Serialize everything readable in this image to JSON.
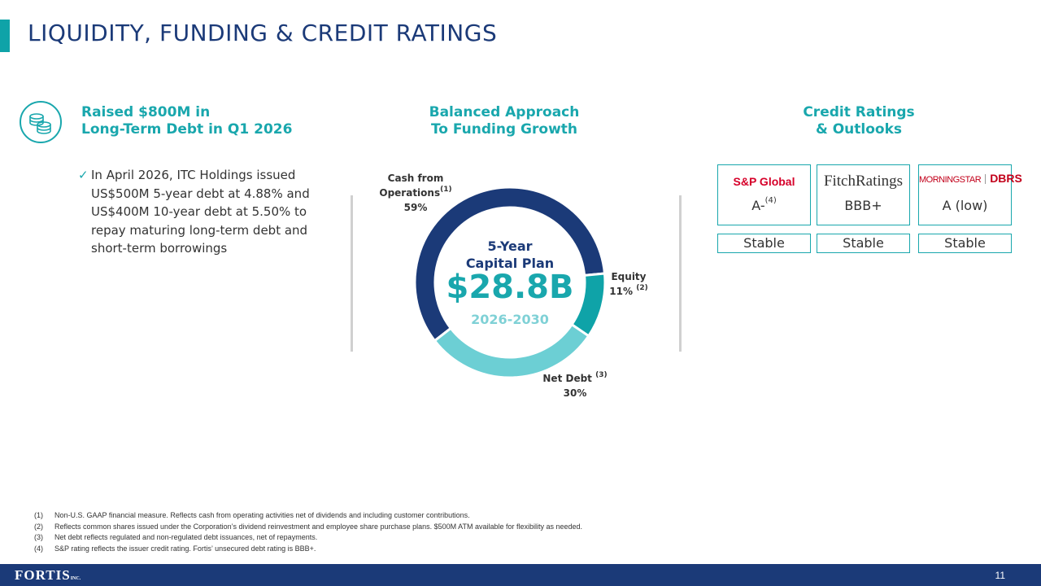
{
  "title": "LIQUIDITY, FUNDING & CREDIT RATINGS",
  "left": {
    "heading_line1": "Raised $800M in",
    "heading_line2": "Long-Term Debt in Q1 2026",
    "icon": "coins-icon",
    "bullet": "In April 2026, ITC Holdings issued US$500M 5-year debt at 4.88% and US$400M 10-year debt at 5.50% to repay maturing long-term debt and short-term borrowings"
  },
  "middle": {
    "heading_line1": "Balanced Approach",
    "heading_line2": "To Funding Growth",
    "center_line1": "5-Year",
    "center_line2": "Capital Plan",
    "center_value": "$28.8B",
    "center_years": "2026-2030"
  },
  "chart_data": {
    "type": "pie",
    "style": "donut",
    "segments": [
      {
        "name": "Cash from Operations",
        "value": 59,
        "label": "59%",
        "note": "(1)",
        "color": "#1b3a78"
      },
      {
        "name": "Equity",
        "value": 11,
        "label": "11%",
        "note": "(2)",
        "color": "#0fa3a8"
      },
      {
        "name": "Net Debt",
        "value": 30,
        "label": "30%",
        "note": "(3)",
        "color": "#6ccfd4"
      }
    ],
    "labels": {
      "cash_line1": "Cash from",
      "cash_line2": "Operations",
      "equity_name": "Equity",
      "debt_name": "Net Debt"
    }
  },
  "right": {
    "heading_line1": "Credit Ratings",
    "heading_line2": "& Outlooks",
    "agencies": [
      {
        "logo_text": "S&P Global",
        "rating": "A-",
        "rating_note": "(4)",
        "outlook": "Stable"
      },
      {
        "logo_text": "FitchRatings",
        "rating": "BBB+",
        "outlook": "Stable"
      },
      {
        "logo_text_1": "MORNINGSTAR",
        "logo_text_2": "DBRS",
        "rating": "A (low)",
        "outlook": "Stable"
      }
    ]
  },
  "footnotes": [
    {
      "num": "(1)",
      "text": "Non-U.S. GAAP financial measure. Reflects cash from operating activities net of dividends and including customer contributions."
    },
    {
      "num": "(2)",
      "text": "Reflects common shares issued under the Corporation’s dividend reinvestment and employee share purchase plans. $500M ATM available for flexibility as needed."
    },
    {
      "num": "(3)",
      "text": "Net debt reflects regulated and non-regulated debt issuances, net of repayments."
    },
    {
      "num": "(4)",
      "text": "S&P rating reflects the issuer credit rating. Fortis’ unsecured debt rating is BBB+."
    }
  ],
  "footer": {
    "logo": "FORTIS",
    "logo_suffix": "INC.",
    "page_number": "11"
  },
  "colors": {
    "navy": "#1b3a78",
    "teal": "#0fa3a8",
    "light_teal": "#6ccfd4"
  }
}
